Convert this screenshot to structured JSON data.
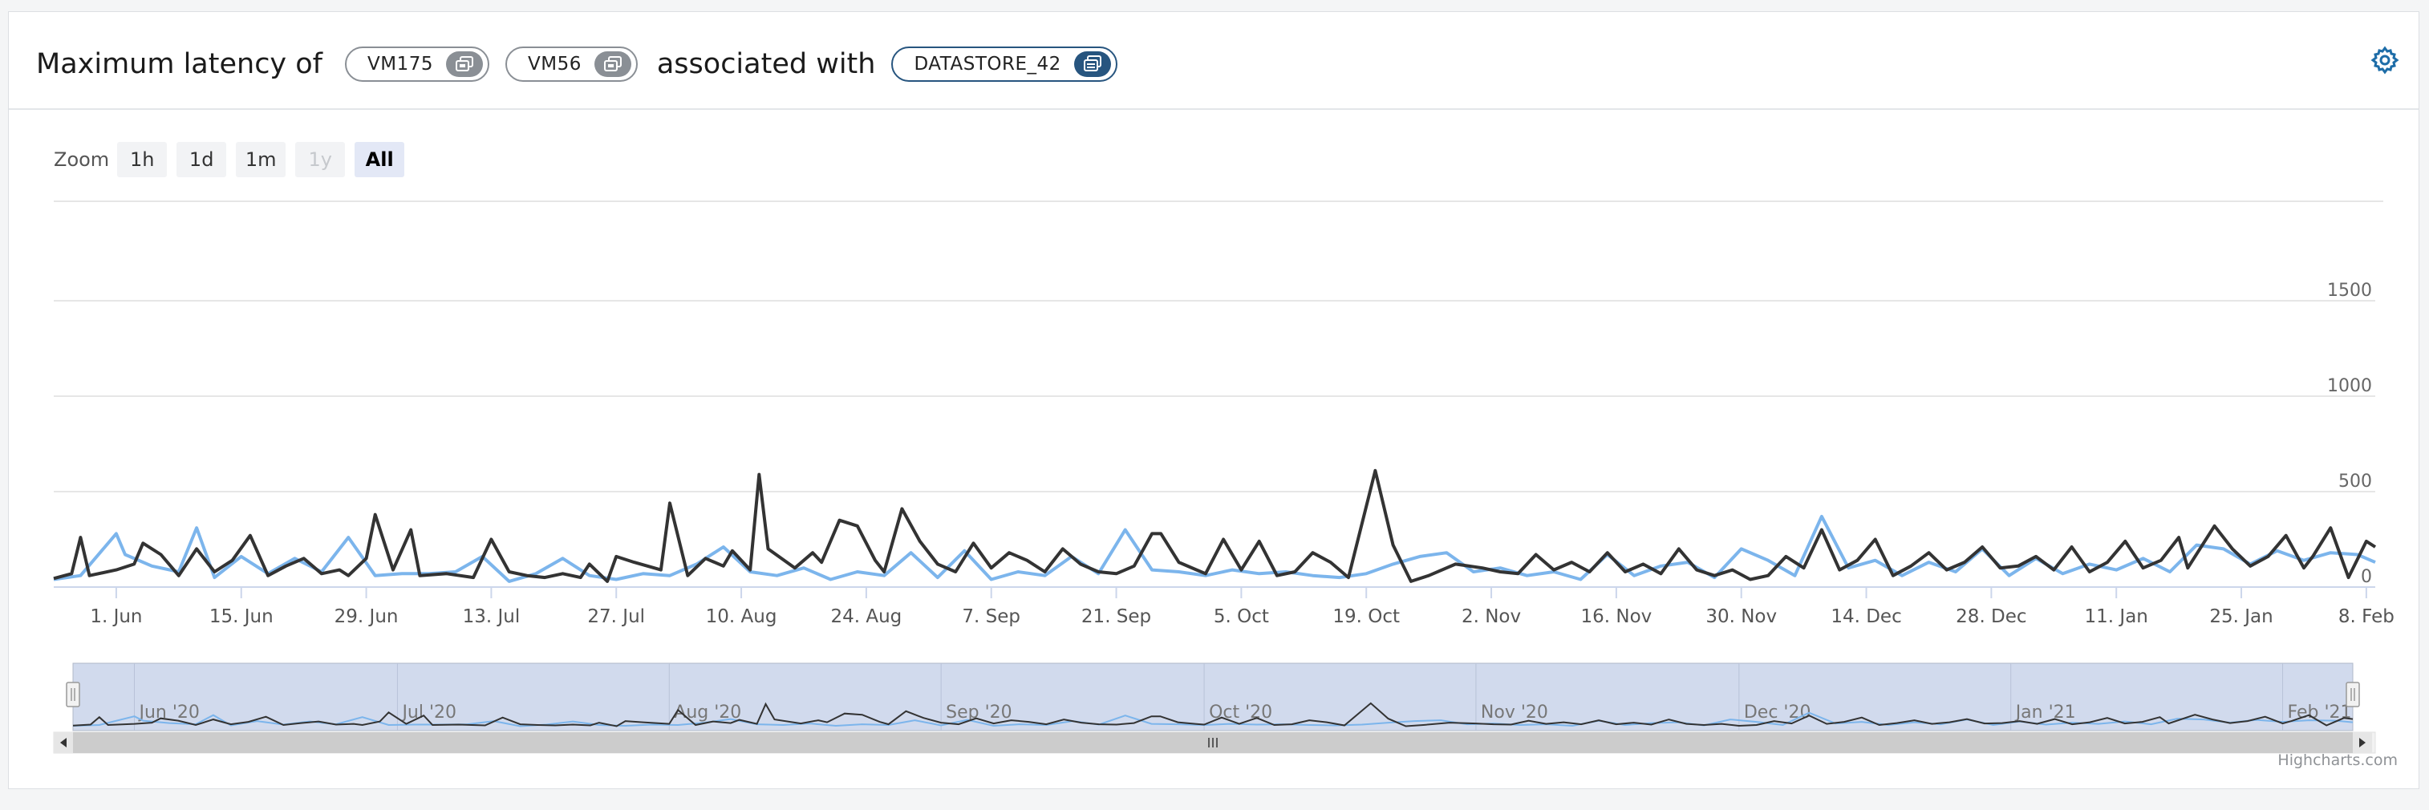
{
  "header": {
    "title_prefix": "Maximum latency of",
    "title_connector": "associated with",
    "vms": [
      {
        "label": "VM175"
      },
      {
        "label": "VM56"
      }
    ],
    "datastore": {
      "label": "DATASTORE_42"
    },
    "settings_icon": "gear-icon"
  },
  "zoom": {
    "label": "Zoom",
    "buttons": [
      {
        "label": "1h",
        "state": "normal"
      },
      {
        "label": "1d",
        "state": "normal"
      },
      {
        "label": "1m",
        "state": "normal"
      },
      {
        "label": "1y",
        "state": "disabled"
      },
      {
        "label": "All",
        "state": "active"
      }
    ]
  },
  "credits": "Highcharts.com",
  "colors": {
    "series_dark": "#333333",
    "series_light": "#7cb5ec",
    "navigator_fill": "#ccd6eb",
    "vm_pill": "#8a8f95",
    "datastore_pill": "#27557f"
  },
  "chart_data": {
    "type": "line",
    "x_start": "2020-05-25",
    "x_end": "2021-02-09",
    "ylim": [
      0,
      1500
    ],
    "yticks": [
      0,
      500,
      1000,
      1500
    ],
    "grid": true,
    "xticks": [
      {
        "date": "2020-06-01",
        "label": "1. Jun"
      },
      {
        "date": "2020-06-15",
        "label": "15. Jun"
      },
      {
        "date": "2020-06-29",
        "label": "29. Jun"
      },
      {
        "date": "2020-07-13",
        "label": "13. Jul"
      },
      {
        "date": "2020-07-27",
        "label": "27. Jul"
      },
      {
        "date": "2020-08-10",
        "label": "10. Aug"
      },
      {
        "date": "2020-08-24",
        "label": "24. Aug"
      },
      {
        "date": "2020-09-07",
        "label": "7. Sep"
      },
      {
        "date": "2020-09-21",
        "label": "21. Sep"
      },
      {
        "date": "2020-10-05",
        "label": "5. Oct"
      },
      {
        "date": "2020-10-19",
        "label": "19. Oct"
      },
      {
        "date": "2020-11-02",
        "label": "2. Nov"
      },
      {
        "date": "2020-11-16",
        "label": "16. Nov"
      },
      {
        "date": "2020-11-30",
        "label": "30. Nov"
      },
      {
        "date": "2020-12-14",
        "label": "14. Dec"
      },
      {
        "date": "2020-12-28",
        "label": "28. Dec"
      },
      {
        "date": "2021-01-11",
        "label": "11. Jan"
      },
      {
        "date": "2021-01-25",
        "label": "25. Jan"
      },
      {
        "date": "2021-02-08",
        "label": "8. Feb"
      }
    ],
    "navigator_ticks": [
      {
        "date": "2020-06-01",
        "label": "Jun '20"
      },
      {
        "date": "2020-07-01",
        "label": "Jul '20"
      },
      {
        "date": "2020-08-01",
        "label": "Aug '20"
      },
      {
        "date": "2020-09-01",
        "label": "Sep '20"
      },
      {
        "date": "2020-10-01",
        "label": "Oct '20"
      },
      {
        "date": "2020-11-01",
        "label": "Nov '20"
      },
      {
        "date": "2020-12-01",
        "label": "Dec '20"
      },
      {
        "date": "2021-01-01",
        "label": "Jan '21"
      },
      {
        "date": "2021-02-01",
        "label": "Feb '21"
      }
    ],
    "series": [
      {
        "color": "#333333",
        "points": [
          [
            "2020-05-25",
            45
          ],
          [
            "2020-05-27",
            70
          ],
          [
            "2020-05-28",
            260
          ],
          [
            "2020-05-29",
            60
          ],
          [
            "2020-06-01",
            90
          ],
          [
            "2020-06-03",
            120
          ],
          [
            "2020-06-04",
            230
          ],
          [
            "2020-06-06",
            170
          ],
          [
            "2020-06-08",
            60
          ],
          [
            "2020-06-10",
            200
          ],
          [
            "2020-06-12",
            80
          ],
          [
            "2020-06-14",
            140
          ],
          [
            "2020-06-16",
            270
          ],
          [
            "2020-06-18",
            60
          ],
          [
            "2020-06-20",
            110
          ],
          [
            "2020-06-22",
            150
          ],
          [
            "2020-06-24",
            70
          ],
          [
            "2020-06-26",
            90
          ],
          [
            "2020-06-27",
            60
          ],
          [
            "2020-06-29",
            150
          ],
          [
            "2020-06-30",
            380
          ],
          [
            "2020-07-02",
            90
          ],
          [
            "2020-07-04",
            300
          ],
          [
            "2020-07-05",
            60
          ],
          [
            "2020-07-08",
            70
          ],
          [
            "2020-07-11",
            50
          ],
          [
            "2020-07-13",
            250
          ],
          [
            "2020-07-15",
            80
          ],
          [
            "2020-07-17",
            60
          ],
          [
            "2020-07-19",
            50
          ],
          [
            "2020-07-21",
            70
          ],
          [
            "2020-07-23",
            50
          ],
          [
            "2020-07-24",
            120
          ],
          [
            "2020-07-26",
            30
          ],
          [
            "2020-07-27",
            160
          ],
          [
            "2020-07-29",
            130
          ],
          [
            "2020-08-01",
            90
          ],
          [
            "2020-08-02",
            440
          ],
          [
            "2020-08-04",
            60
          ],
          [
            "2020-08-06",
            150
          ],
          [
            "2020-08-08",
            110
          ],
          [
            "2020-08-09",
            190
          ],
          [
            "2020-08-11",
            90
          ],
          [
            "2020-08-12",
            590
          ],
          [
            "2020-08-13",
            200
          ],
          [
            "2020-08-16",
            100
          ],
          [
            "2020-08-18",
            180
          ],
          [
            "2020-08-19",
            130
          ],
          [
            "2020-08-21",
            350
          ],
          [
            "2020-08-23",
            320
          ],
          [
            "2020-08-25",
            140
          ],
          [
            "2020-08-26",
            80
          ],
          [
            "2020-08-28",
            410
          ],
          [
            "2020-08-30",
            240
          ],
          [
            "2020-09-01",
            120
          ],
          [
            "2020-09-03",
            80
          ],
          [
            "2020-09-05",
            230
          ],
          [
            "2020-09-07",
            100
          ],
          [
            "2020-09-09",
            180
          ],
          [
            "2020-09-11",
            140
          ],
          [
            "2020-09-13",
            80
          ],
          [
            "2020-09-15",
            200
          ],
          [
            "2020-09-17",
            120
          ],
          [
            "2020-09-19",
            80
          ],
          [
            "2020-09-21",
            70
          ],
          [
            "2020-09-23",
            110
          ],
          [
            "2020-09-25",
            280
          ],
          [
            "2020-09-26",
            280
          ],
          [
            "2020-09-28",
            130
          ],
          [
            "2020-09-30",
            90
          ],
          [
            "2020-10-01",
            70
          ],
          [
            "2020-10-03",
            250
          ],
          [
            "2020-10-05",
            90
          ],
          [
            "2020-10-07",
            240
          ],
          [
            "2020-10-09",
            60
          ],
          [
            "2020-10-11",
            80
          ],
          [
            "2020-10-13",
            180
          ],
          [
            "2020-10-15",
            130
          ],
          [
            "2020-10-17",
            50
          ],
          [
            "2020-10-20",
            610
          ],
          [
            "2020-10-22",
            220
          ],
          [
            "2020-10-24",
            30
          ],
          [
            "2020-10-26",
            60
          ],
          [
            "2020-10-29",
            120
          ],
          [
            "2020-11-01",
            100
          ],
          [
            "2020-11-03",
            80
          ],
          [
            "2020-11-05",
            70
          ],
          [
            "2020-11-07",
            170
          ],
          [
            "2020-11-09",
            90
          ],
          [
            "2020-11-11",
            130
          ],
          [
            "2020-11-13",
            80
          ],
          [
            "2020-11-15",
            180
          ],
          [
            "2020-11-17",
            80
          ],
          [
            "2020-11-19",
            120
          ],
          [
            "2020-11-21",
            70
          ],
          [
            "2020-11-23",
            200
          ],
          [
            "2020-11-25",
            90
          ],
          [
            "2020-11-27",
            60
          ],
          [
            "2020-11-29",
            90
          ],
          [
            "2020-12-01",
            40
          ],
          [
            "2020-12-03",
            60
          ],
          [
            "2020-12-05",
            160
          ],
          [
            "2020-12-07",
            100
          ],
          [
            "2020-12-09",
            300
          ],
          [
            "2020-12-11",
            90
          ],
          [
            "2020-12-13",
            140
          ],
          [
            "2020-12-15",
            250
          ],
          [
            "2020-12-17",
            60
          ],
          [
            "2020-12-19",
            110
          ],
          [
            "2020-12-21",
            180
          ],
          [
            "2020-12-23",
            90
          ],
          [
            "2020-12-25",
            130
          ],
          [
            "2020-12-27",
            210
          ],
          [
            "2020-12-29",
            100
          ],
          [
            "2020-12-31",
            110
          ],
          [
            "2021-01-02",
            160
          ],
          [
            "2021-01-04",
            90
          ],
          [
            "2021-01-06",
            210
          ],
          [
            "2021-01-08",
            80
          ],
          [
            "2021-01-10",
            130
          ],
          [
            "2021-01-12",
            240
          ],
          [
            "2021-01-14",
            100
          ],
          [
            "2021-01-16",
            140
          ],
          [
            "2021-01-18",
            260
          ],
          [
            "2021-01-19",
            100
          ],
          [
            "2021-01-22",
            320
          ],
          [
            "2021-01-24",
            200
          ],
          [
            "2021-01-26",
            110
          ],
          [
            "2021-01-28",
            160
          ],
          [
            "2021-01-30",
            270
          ],
          [
            "2021-02-01",
            100
          ],
          [
            "2021-02-02",
            160
          ],
          [
            "2021-02-04",
            310
          ],
          [
            "2021-02-06",
            50
          ],
          [
            "2021-02-08",
            240
          ],
          [
            "2021-02-09",
            210
          ]
        ]
      },
      {
        "color": "#7cb5ec",
        "points": [
          [
            "2020-05-25",
            40
          ],
          [
            "2020-05-28",
            60
          ],
          [
            "2020-06-01",
            280
          ],
          [
            "2020-06-02",
            170
          ],
          [
            "2020-06-05",
            110
          ],
          [
            "2020-06-08",
            80
          ],
          [
            "2020-06-10",
            310
          ],
          [
            "2020-06-12",
            50
          ],
          [
            "2020-06-15",
            160
          ],
          [
            "2020-06-18",
            70
          ],
          [
            "2020-06-21",
            150
          ],
          [
            "2020-06-24",
            80
          ],
          [
            "2020-06-27",
            260
          ],
          [
            "2020-06-30",
            60
          ],
          [
            "2020-07-03",
            70
          ],
          [
            "2020-07-06",
            70
          ],
          [
            "2020-07-09",
            80
          ],
          [
            "2020-07-12",
            160
          ],
          [
            "2020-07-15",
            30
          ],
          [
            "2020-07-18",
            70
          ],
          [
            "2020-07-21",
            150
          ],
          [
            "2020-07-24",
            60
          ],
          [
            "2020-07-27",
            40
          ],
          [
            "2020-07-30",
            70
          ],
          [
            "2020-08-02",
            60
          ],
          [
            "2020-08-05",
            120
          ],
          [
            "2020-08-08",
            210
          ],
          [
            "2020-08-11",
            80
          ],
          [
            "2020-08-14",
            60
          ],
          [
            "2020-08-17",
            100
          ],
          [
            "2020-08-20",
            40
          ],
          [
            "2020-08-23",
            80
          ],
          [
            "2020-08-26",
            60
          ],
          [
            "2020-08-29",
            180
          ],
          [
            "2020-09-01",
            50
          ],
          [
            "2020-09-04",
            190
          ],
          [
            "2020-09-07",
            40
          ],
          [
            "2020-09-10",
            80
          ],
          [
            "2020-09-13",
            60
          ],
          [
            "2020-09-16",
            160
          ],
          [
            "2020-09-19",
            70
          ],
          [
            "2020-09-22",
            300
          ],
          [
            "2020-09-25",
            90
          ],
          [
            "2020-09-28",
            80
          ],
          [
            "2020-10-01",
            60
          ],
          [
            "2020-10-04",
            90
          ],
          [
            "2020-10-07",
            70
          ],
          [
            "2020-10-10",
            80
          ],
          [
            "2020-10-13",
            60
          ],
          [
            "2020-10-16",
            50
          ],
          [
            "2020-10-19",
            70
          ],
          [
            "2020-10-22",
            120
          ],
          [
            "2020-10-25",
            160
          ],
          [
            "2020-10-28",
            180
          ],
          [
            "2020-10-31",
            80
          ],
          [
            "2020-11-03",
            100
          ],
          [
            "2020-11-06",
            60
          ],
          [
            "2020-11-09",
            80
          ],
          [
            "2020-11-12",
            40
          ],
          [
            "2020-11-15",
            170
          ],
          [
            "2020-11-18",
            60
          ],
          [
            "2020-11-21",
            110
          ],
          [
            "2020-11-24",
            130
          ],
          [
            "2020-11-27",
            50
          ],
          [
            "2020-11-30",
            200
          ],
          [
            "2020-12-03",
            140
          ],
          [
            "2020-12-06",
            60
          ],
          [
            "2020-12-09",
            370
          ],
          [
            "2020-12-12",
            100
          ],
          [
            "2020-12-15",
            140
          ],
          [
            "2020-12-18",
            60
          ],
          [
            "2020-12-21",
            130
          ],
          [
            "2020-12-24",
            80
          ],
          [
            "2020-12-27",
            200
          ],
          [
            "2020-12-30",
            60
          ],
          [
            "2021-01-02",
            150
          ],
          [
            "2021-01-05",
            70
          ],
          [
            "2021-01-08",
            120
          ],
          [
            "2021-01-11",
            90
          ],
          [
            "2021-01-14",
            150
          ],
          [
            "2021-01-17",
            80
          ],
          [
            "2021-01-20",
            220
          ],
          [
            "2021-01-23",
            200
          ],
          [
            "2021-01-26",
            120
          ],
          [
            "2021-01-29",
            190
          ],
          [
            "2021-02-01",
            140
          ],
          [
            "2021-02-04",
            180
          ],
          [
            "2021-02-07",
            170
          ],
          [
            "2021-02-09",
            130
          ]
        ]
      }
    ]
  }
}
